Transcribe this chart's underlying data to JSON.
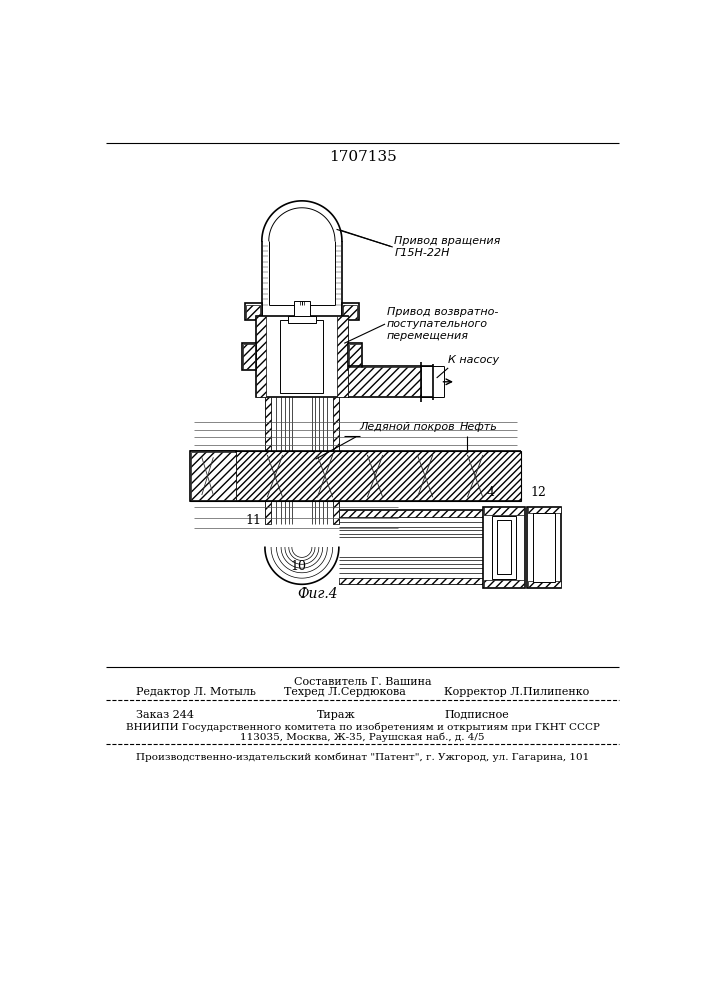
{
  "patent_number": "1707135",
  "fig_label": "Фиг.4",
  "bg_color": "#ffffff",
  "line_color": "#000000",
  "annotations": {
    "privod_vrash": "Привод вращения\nГ15Н-22Н",
    "privod_vozv": "Привод возвратно-\nпоступательного\nперемещения",
    "k_nasosu": "К насосу",
    "ledyanoy": "Ледяной покров",
    "neft": "Нефть"
  },
  "labels": {
    "4": "4",
    "10": "10",
    "11": "11",
    "12": "12"
  },
  "footer": {
    "sostavitel": "Составитель Г. Вашина",
    "redaktor": "Редактор Л. Мотыль",
    "tehred": "Техред Л.Сердюкова",
    "korrektor": "Корректор Л.Пилипенко",
    "zakaz": "Заказ 244",
    "tirazh": "Тираж",
    "podpisnoe": "Подписное",
    "vniiipi": "ВНИИПИ Государственного комитета по изобретениям и открытиям при ГКНТ СССР",
    "address": "113035, Москва, Ж-35, Раушская наб., д. 4/5",
    "proizv": "Производственно-издательский комбинат \"Патент\", г. Ужгород, ул. Гагарина, 101"
  }
}
